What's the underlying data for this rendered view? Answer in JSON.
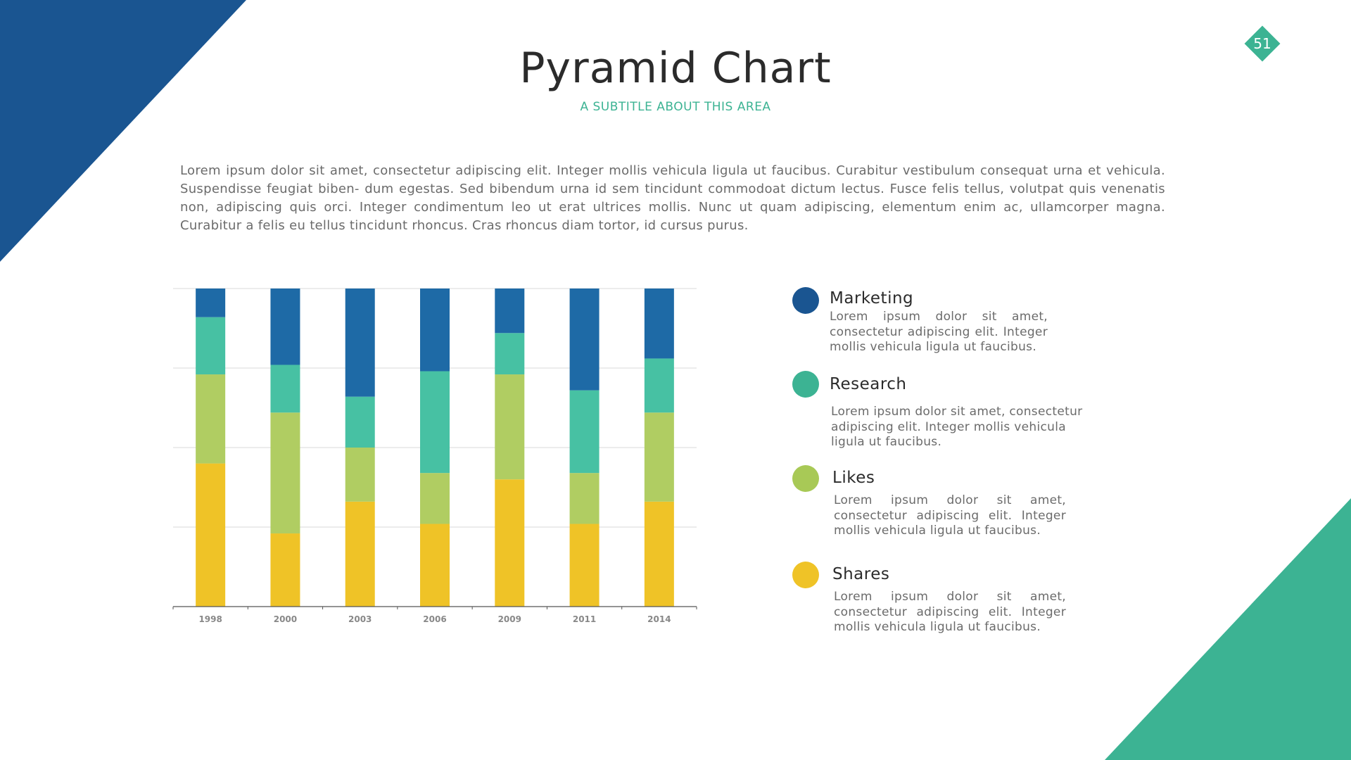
{
  "slide": {
    "title": "Pyramid Chart",
    "subtitle": "A SUBTITLE ABOUT THIS AREA",
    "page_number": "51",
    "intro": "Lorem ipsum dolor sit amet, consectetur adipiscing elit. Integer mollis vehicula ligula ut faucibus. Curabitur vestibulum consequat urna et vehicula. Suspendisse feugiat biben- dum egestas. Sed bibendum urna id sem tincidunt commodoat dictum lectus. Fusce felis tellus, volutpat quis venenatis non, adipiscing quis orci. Integer condimentum leo ut erat ultrices mollis. Nunc ut quam adipiscing, elementum enim ac, ullamcorper magna. Curabitur a felis eu tellus tincidunt rhoncus. Cras rhoncus diam tortor, id cursus purus."
  },
  "colors": {
    "navy": "#1a5591",
    "marketing": "#1e6aa6",
    "research": "#47c1a3",
    "likes": "#b0cd62",
    "shares": "#efc327",
    "accent": "#3cb393",
    "grid": "#d9d9d9",
    "axis": "#555555",
    "tick_text": "#888888"
  },
  "legend": [
    {
      "label": "Marketing",
      "desc": "Lorem ipsum dolor sit amet, consectetur adipiscing elit. Integer mollis vehicula ligula ut faucibus.",
      "color": "#1a5591"
    },
    {
      "label": "Research",
      "desc": "Lorem ipsum dolor sit amet, consectetur adipiscing elit. Integer mollis vehicula ligula ut faucibus.",
      "color": "#3cb393"
    },
    {
      "label": "Likes",
      "desc": "Lorem ipsum dolor sit amet, consectetur adipiscing elit. Integer mollis vehicula ligula ut faucibus.",
      "color": "#a8c956"
    },
    {
      "label": "Shares",
      "desc": "Lorem ipsum dolor sit amet, consectetur adipiscing elit. Integer mollis vehicula ligula ut faucibus.",
      "color": "#efc327"
    }
  ],
  "chart_data": {
    "type": "bar",
    "stacked": true,
    "title": "",
    "xlabel": "",
    "ylabel": "",
    "ylim": [
      0,
      100
    ],
    "grid": true,
    "categories": [
      "1998",
      "2000",
      "2003",
      "2006",
      "2009",
      "2011",
      "2014"
    ],
    "series": [
      {
        "name": "Shares",
        "values": [
          45,
          23,
          33,
          26,
          40,
          26,
          33
        ]
      },
      {
        "name": "Likes",
        "values": [
          28,
          38,
          17,
          16,
          33,
          16,
          28
        ]
      },
      {
        "name": "Research",
        "values": [
          18,
          15,
          16,
          32,
          13,
          26,
          17
        ]
      },
      {
        "name": "Marketing",
        "values": [
          9,
          24,
          34,
          26,
          14,
          32,
          22
        ]
      }
    ]
  }
}
